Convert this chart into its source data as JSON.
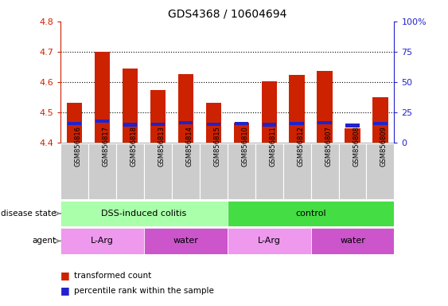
{
  "title": "GDS4368 / 10604694",
  "samples": [
    "GSM856816",
    "GSM856817",
    "GSM856818",
    "GSM856813",
    "GSM856814",
    "GSM856815",
    "GSM856810",
    "GSM856811",
    "GSM856812",
    "GSM856807",
    "GSM856808",
    "GSM856809"
  ],
  "red_values": [
    4.53,
    4.7,
    4.645,
    4.572,
    4.625,
    4.532,
    4.465,
    4.602,
    4.622,
    4.635,
    4.445,
    4.55
  ],
  "blue_values": [
    4.462,
    4.47,
    4.458,
    4.46,
    4.465,
    4.46,
    4.462,
    4.458,
    4.462,
    4.465,
    4.455,
    4.462
  ],
  "bar_base": 4.4,
  "ylim": [
    4.4,
    4.8
  ],
  "y_ticks": [
    4.4,
    4.5,
    4.6,
    4.7,
    4.8
  ],
  "right_y_ticks": [
    0,
    25,
    50,
    75,
    100
  ],
  "right_ylim": [
    0,
    100
  ],
  "red_color": "#cc2200",
  "blue_color": "#2222cc",
  "grid_color": "#000000",
  "title_fontsize": 10,
  "tick_fontsize": 8,
  "disease_state_groups": [
    {
      "label": "DSS-induced colitis",
      "start": 0,
      "end": 6,
      "color": "#aaffaa"
    },
    {
      "label": "control",
      "start": 6,
      "end": 12,
      "color": "#44dd44"
    }
  ],
  "agent_groups": [
    {
      "label": "L-Arg",
      "start": 0,
      "end": 3,
      "color": "#ee99ee"
    },
    {
      "label": "water",
      "start": 3,
      "end": 6,
      "color": "#cc55cc"
    },
    {
      "label": "L-Arg",
      "start": 6,
      "end": 9,
      "color": "#ee99ee"
    },
    {
      "label": "water",
      "start": 9,
      "end": 12,
      "color": "#cc55cc"
    }
  ],
  "left_axis_color": "#cc2200",
  "right_axis_color": "#2222cc",
  "bar_width": 0.55,
  "blue_bar_height": 0.012,
  "sample_label_bg": "#cccccc",
  "grid_lines": [
    4.5,
    4.6,
    4.7
  ]
}
